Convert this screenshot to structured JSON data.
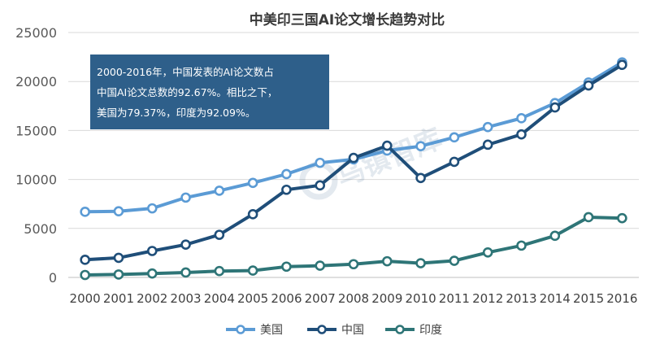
{
  "chart_data": {
    "type": "line",
    "title": "中美印三国AI论文增长趋势对比",
    "xlabel": "",
    "ylabel": "",
    "categories": [
      "2000",
      "2001",
      "2002",
      "2003",
      "2004",
      "2005",
      "2006",
      "2007",
      "2008",
      "2009",
      "2010",
      "2011",
      "2012",
      "2013",
      "2014",
      "2015",
      "2016"
    ],
    "ylim": [
      0,
      25000
    ],
    "yticks": [
      0,
      5000,
      10000,
      15000,
      20000,
      25000
    ],
    "grid": true,
    "legend": "bottom-center",
    "series": [
      {
        "name": "美国",
        "color": "#5b9bd5",
        "values": [
          6700,
          6750,
          7050,
          8150,
          8850,
          9650,
          10550,
          11700,
          12050,
          12950,
          13400,
          14300,
          15350,
          16250,
          17800,
          19900,
          21950
        ]
      },
      {
        "name": "中国",
        "color": "#1f4e79",
        "values": [
          1800,
          2000,
          2700,
          3350,
          4350,
          6450,
          8950,
          9400,
          12200,
          13450,
          10150,
          11800,
          13550,
          14600,
          17350,
          19600,
          21700
        ]
      },
      {
        "name": "印度",
        "color": "#2e7577",
        "values": [
          250,
          300,
          400,
          500,
          650,
          700,
          1100,
          1200,
          1350,
          1650,
          1450,
          1700,
          2550,
          3250,
          4250,
          6150,
          6050
        ]
      }
    ]
  },
  "callout": {
    "line1": "2000-2016年，中国发表的AI论文数占",
    "line2": "中国AI论文总数的92.67%。相比之下，",
    "line3": "美国为79.37%，印度为92.09%。"
  },
  "watermark": "乌镇智库"
}
